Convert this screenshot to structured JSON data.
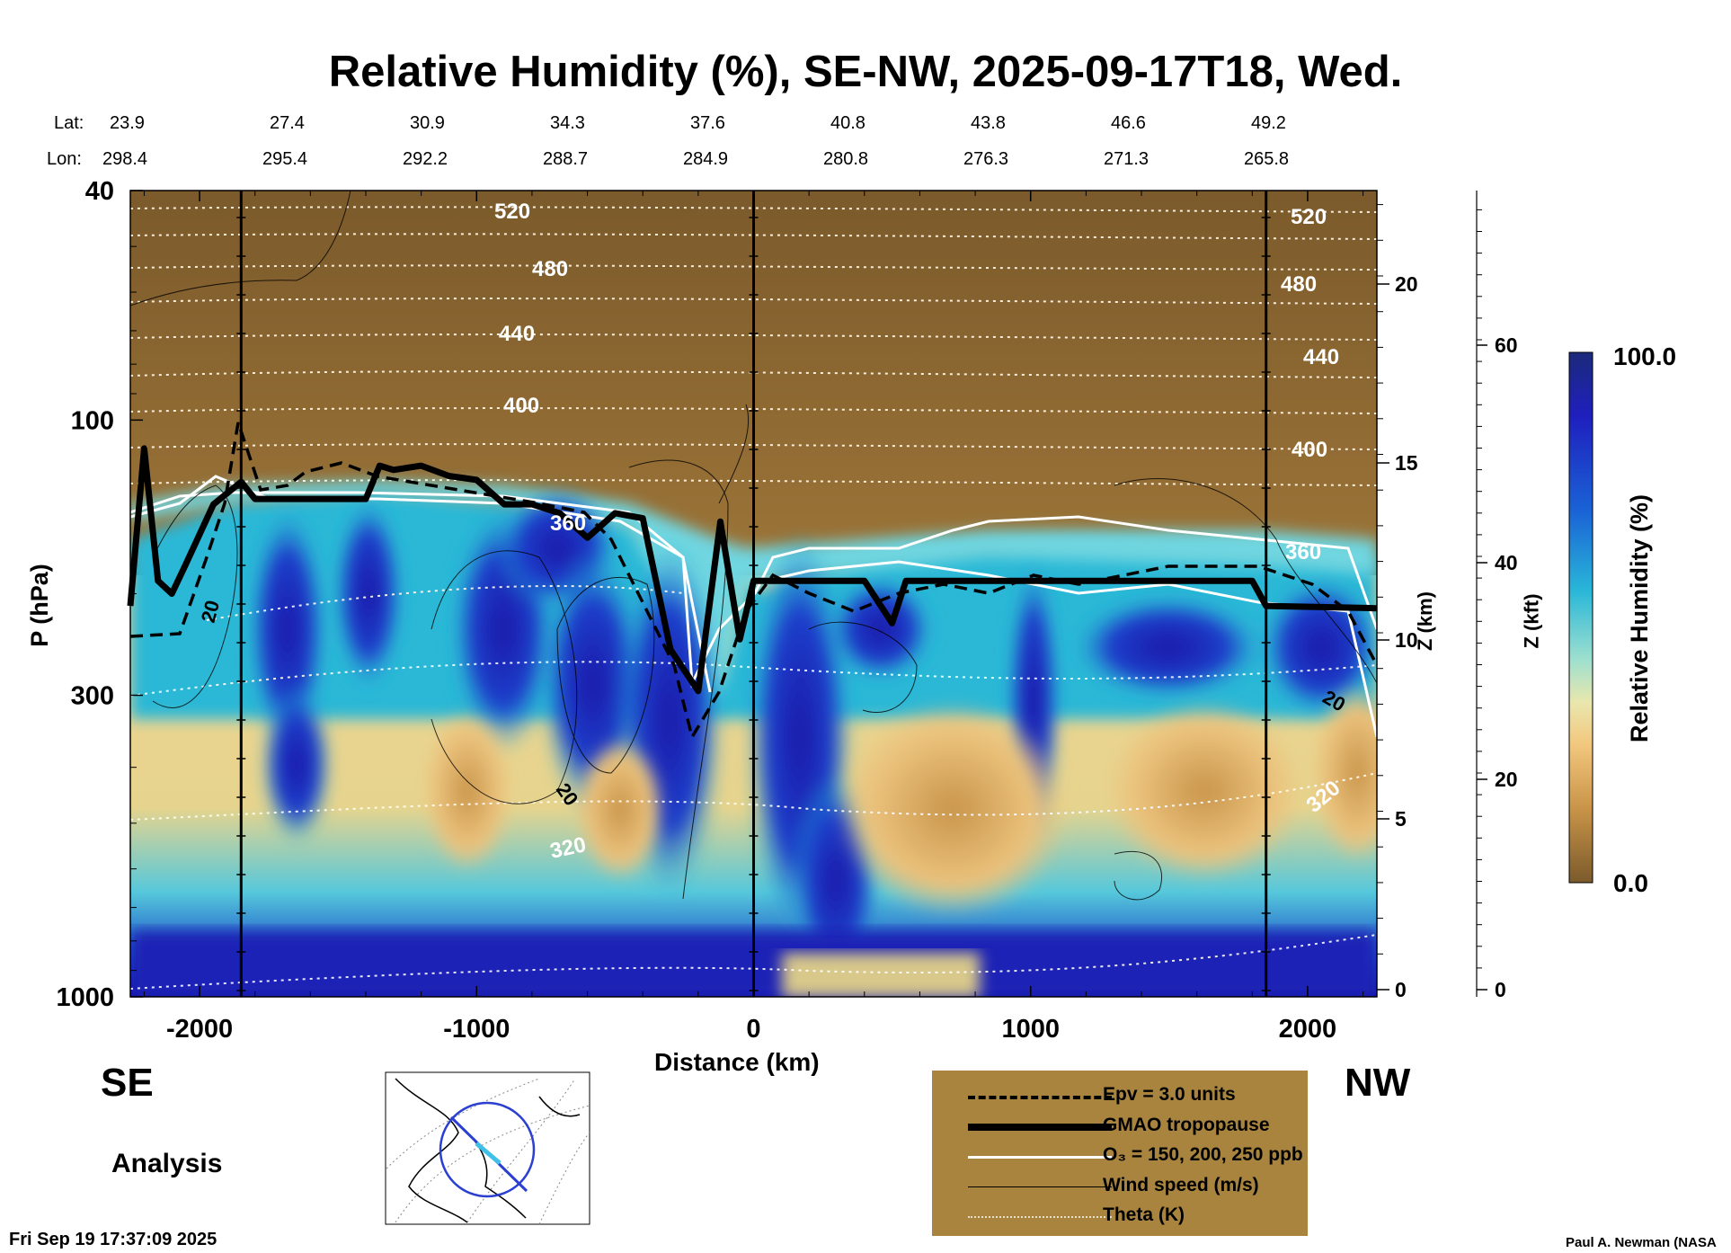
{
  "title": "Relative Humidity (%), SE-NW, 2025-09-17T18, Wed.",
  "lat_label": "Lat:",
  "lon_label": "Lon:",
  "lat_values": [
    "23.9",
    "27.4",
    "30.9",
    "34.3",
    "37.6",
    "40.8",
    "43.8",
    "46.6",
    "49.2"
  ],
  "lon_values": [
    "298.4",
    "295.4",
    "292.2",
    "288.7",
    "284.9",
    "280.8",
    "276.3",
    "271.3",
    "265.8"
  ],
  "left_dir": "SE",
  "right_dir": "NW",
  "run_type": "Analysis",
  "timestamp": "Fri Sep 19 17:37:09 2025",
  "credit": "Paul A. Newman (NASA",
  "colorbar": {
    "label": "Relative Humidity (%)",
    "max_label": "100.0",
    "min_label": "0.0"
  },
  "colors": {
    "dry": "#7d5a27",
    "moist": "#2bb8d6",
    "wet": "#1a1ab0",
    "legend_bg": "#a9843e"
  },
  "legend": {
    "epv": "Epv = 3.0 units",
    "tropopause": "GMAO tropopause",
    "ozone": "O₃ = 150, 200, 250 ppb",
    "wind": "Wind speed (m/s)",
    "theta": "Theta (K)"
  },
  "chart_data": {
    "type": "heatmap",
    "title": "Relative Humidity (%), SE-NW, 2025-09-17T18, Wed.",
    "xlabel": "Distance (km)",
    "ylabel": "P (hPa)",
    "y2label": "Z (km)",
    "y3label": "Z (kft)",
    "xlim": [
      -2250,
      2250
    ],
    "ylim_hpa": [
      1000,
      40
    ],
    "y_scale": "log",
    "x_ticks": [
      "-2000",
      "-1000",
      "0",
      "1000",
      "2000"
    ],
    "x_tick_values": [
      -2000,
      -1000,
      0,
      1000,
      2000
    ],
    "p_ticks": [
      "40",
      "100",
      "300",
      "1000"
    ],
    "p_tick_values": [
      40,
      100,
      300,
      1000
    ],
    "z_km_ticks": [
      "0",
      "5",
      "10",
      "15",
      "20"
    ],
    "z_kft_ticks": [
      "0",
      "20",
      "40",
      "60"
    ],
    "section_markers_km": [
      -1850,
      0,
      1850
    ],
    "theta_labels": [
      "520",
      "480",
      "440",
      "400",
      "360",
      "320",
      "520",
      "480",
      "440",
      "400",
      "360",
      "320"
    ],
    "wind_labels": [
      "20",
      "20",
      "20"
    ],
    "tropopause_hpa": [
      [
        -2250,
        210
      ],
      [
        -2200,
        112
      ],
      [
        -2150,
        190
      ],
      [
        -2100,
        200
      ],
      [
        -2050,
        178
      ],
      [
        -1950,
        140
      ],
      [
        -1850,
        128
      ],
      [
        -1800,
        137
      ],
      [
        -1400,
        137
      ],
      [
        -1350,
        120
      ],
      [
        -1300,
        122
      ],
      [
        -1200,
        120
      ],
      [
        -1100,
        125
      ],
      [
        -1000,
        127
      ],
      [
        -900,
        140
      ],
      [
        -800,
        140
      ],
      [
        -700,
        145
      ],
      [
        -600,
        160
      ],
      [
        -500,
        145
      ],
      [
        -400,
        148
      ],
      [
        -300,
        250
      ],
      [
        -200,
        295
      ],
      [
        -120,
        150
      ],
      [
        -50,
        240
      ],
      [
        0,
        190
      ],
      [
        400,
        190
      ],
      [
        500,
        225
      ],
      [
        550,
        190
      ],
      [
        1800,
        190
      ],
      [
        1850,
        210
      ],
      [
        2250,
        212
      ]
    ],
    "rh_scale": {
      "min": 0.0,
      "max": 100.0,
      "unit": "%"
    }
  }
}
